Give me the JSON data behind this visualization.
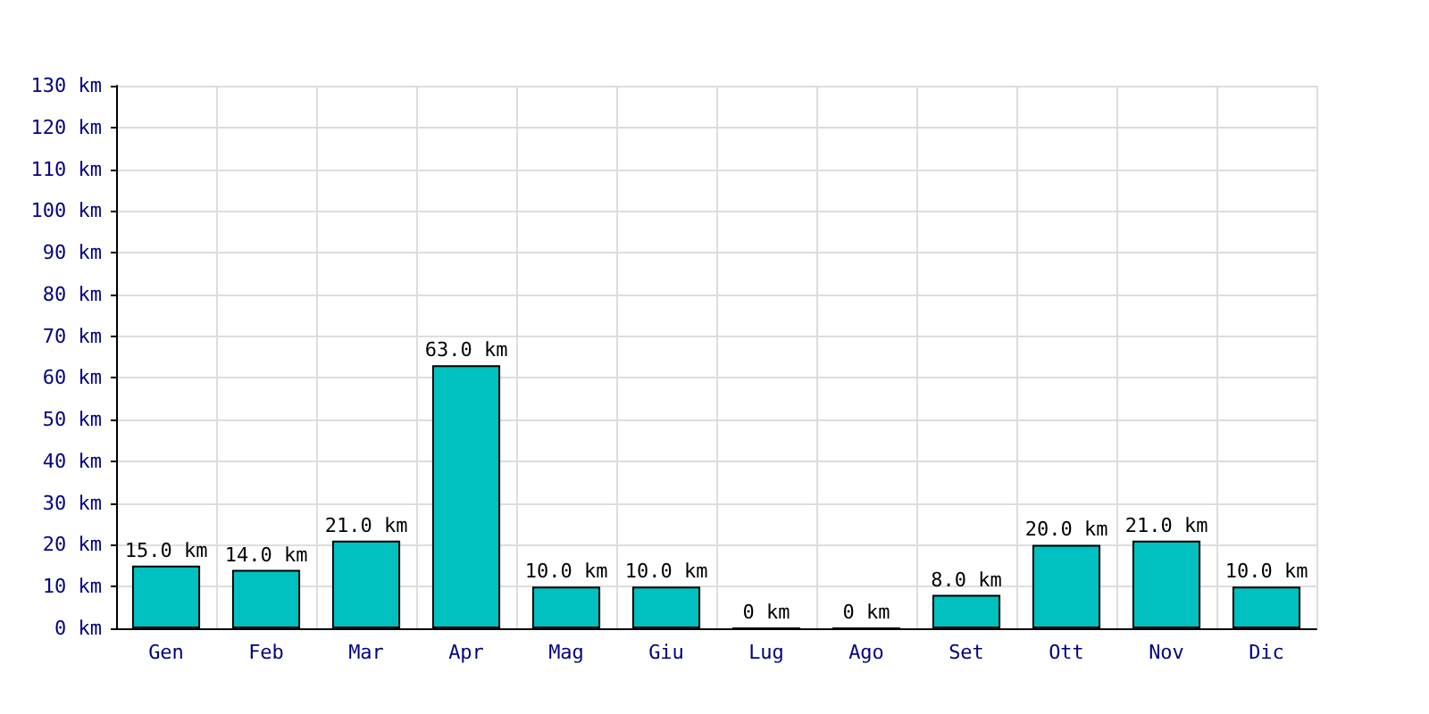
{
  "chart_data": {
    "type": "bar",
    "categories": [
      "Gen",
      "Feb",
      "Mar",
      "Apr",
      "Mag",
      "Giu",
      "Lug",
      "Ago",
      "Set",
      "Ott",
      "Nov",
      "Dic"
    ],
    "values": [
      15,
      14,
      21,
      63,
      10,
      10,
      0,
      0,
      8,
      20,
      21,
      10
    ],
    "value_labels": [
      "15.0 km",
      "14.0 km",
      "21.0 km",
      "63.0 km",
      "10.0 km",
      "10.0 km",
      "0 km",
      "0 km",
      "8.0 km",
      "20.0 km",
      "21.0 km",
      "10.0 km"
    ],
    "color": "#00c0c0",
    "ylim": [
      0,
      130
    ],
    "yticks": [
      {
        "value": 0,
        "label": "0 km"
      },
      {
        "value": 10,
        "label": "10 km"
      },
      {
        "value": 20,
        "label": "20 km"
      },
      {
        "value": 30,
        "label": "30 km"
      },
      {
        "value": 40,
        "label": "40 km"
      },
      {
        "value": 50,
        "label": "50 km"
      },
      {
        "value": 60,
        "label": "60 km"
      },
      {
        "value": 70,
        "label": "70 km"
      },
      {
        "value": 80,
        "label": "80 km"
      },
      {
        "value": 90,
        "label": "90 km"
      },
      {
        "value": 100,
        "label": "100 km"
      },
      {
        "value": 110,
        "label": "110 km"
      },
      {
        "value": 120,
        "label": "120 km"
      },
      {
        "value": 130,
        "label": "130 km"
      }
    ],
    "grid": true
  }
}
